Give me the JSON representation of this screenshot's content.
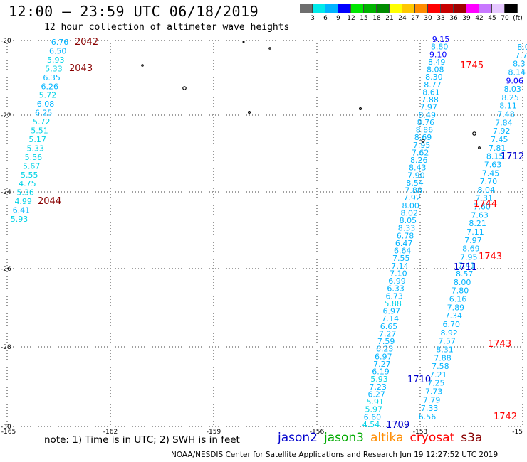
{
  "header": {
    "title": "12:00 — 23:59 UTC 06/18/2019",
    "subtitle": "12 hour collection of altimeter wave heights"
  },
  "legend": {
    "colors": [
      "#6e6e6e",
      "#00eaea",
      "#00b4ff",
      "#0000ff",
      "#00e600",
      "#00b400",
      "#008c00",
      "#ffff00",
      "#ffc800",
      "#ff8c00",
      "#ff0000",
      "#c80000",
      "#a00000",
      "#ff00ff",
      "#c878ff",
      "#e6c8ff",
      "#000000"
    ],
    "labels": [
      "3",
      "6",
      "9",
      "12",
      "15",
      "18",
      "21",
      "24",
      "27",
      "30",
      "33",
      "36",
      "39",
      "42",
      "45",
      "70",
      "(ft)"
    ]
  },
  "axes": {
    "y_labels": [
      "-20",
      "-22",
      "-24",
      "-26",
      "-28",
      "-30"
    ],
    "x_labels": [
      "-165",
      "-162",
      "-159",
      "-156",
      "-153",
      "-15"
    ]
  },
  "colors": {
    "jason2": "#0000cc",
    "jason3": "#00aa00",
    "altika": "#ff8c00",
    "cryosat": "#ff0000",
    "s3a": "#880000",
    "swh": "#00b4ff"
  },
  "observations": {
    "s3a_track": [
      "6.76",
      "6.50",
      "5.93",
      "5.33",
      "6.35",
      "6.26",
      "5.72",
      "6.08",
      "6.25",
      "5.72",
      "5.51",
      "5.17",
      "5.33",
      "5.56",
      "5.67",
      "5.55",
      "4.75",
      "5.36",
      "4.99",
      "6.41",
      "5.93"
    ],
    "jason2_track": [
      "9.15",
      "8.80",
      "9.10",
      "8.49",
      "8.08",
      "8.30",
      "8.77",
      "8.61",
      "7.88",
      "7.97",
      "8.49",
      "8.76",
      "8.86",
      "8.69",
      "7.95",
      "7.62",
      "8.26",
      "8.43",
      "7.90",
      "8.54",
      "7.88",
      "7.92",
      "8.00",
      "8.02",
      "8.05",
      "8.33",
      "6.78",
      "6.47",
      "6.64",
      "7.55",
      "7.14",
      "7.10",
      "6.99",
      "6.33",
      "6.73",
      "5.88",
      "6.97",
      "7.14",
      "6.65",
      "7.27",
      "7.59",
      "6.23",
      "6.97",
      "7.27",
      "6.19",
      "5.93",
      "7.23",
      "6.27",
      "5.91",
      "5.97",
      "6.60",
      "4.54"
    ],
    "cryosat_track": [
      "8.0",
      "7.7",
      "8.3",
      "8.14",
      "9.06",
      "8.03",
      "8.25",
      "8.11",
      "7.48",
      "7.84",
      "7.92",
      "7.45",
      "7.81",
      "8.15",
      "7.63",
      "7.45",
      "7.70",
      "8.04",
      "7.31",
      "7.60",
      "7.63",
      "8.21",
      "7.11",
      "7.97",
      "8.69",
      "7.95",
      "7.41",
      "8.57",
      "8.00",
      "7.80",
      "6.16",
      "7.89",
      "7.34",
      "6.70",
      "8.92",
      "7.57",
      "8.31",
      "7.88",
      "7.58",
      "7.21",
      "7.25",
      "7.73",
      "7.79",
      "7.33",
      "6.56"
    ]
  },
  "time_labels": {
    "s3a": [
      "2042",
      "2043",
      "2044"
    ],
    "jason2": [
      "1712",
      "1711",
      "1710",
      "1709"
    ],
    "cryosat": [
      "1745",
      "1744",
      "1743",
      "1743",
      "1742"
    ]
  },
  "note": "note: 1) Time is in UTC; 2) SWH is in feet",
  "satellites": [
    "jason2",
    "jason3",
    "altika",
    "cryosat",
    "s3a"
  ],
  "footer": "NOAA/NESDIS Center for Satellite Applications and Research   Jun 19 12:27:52 UTC 2019"
}
